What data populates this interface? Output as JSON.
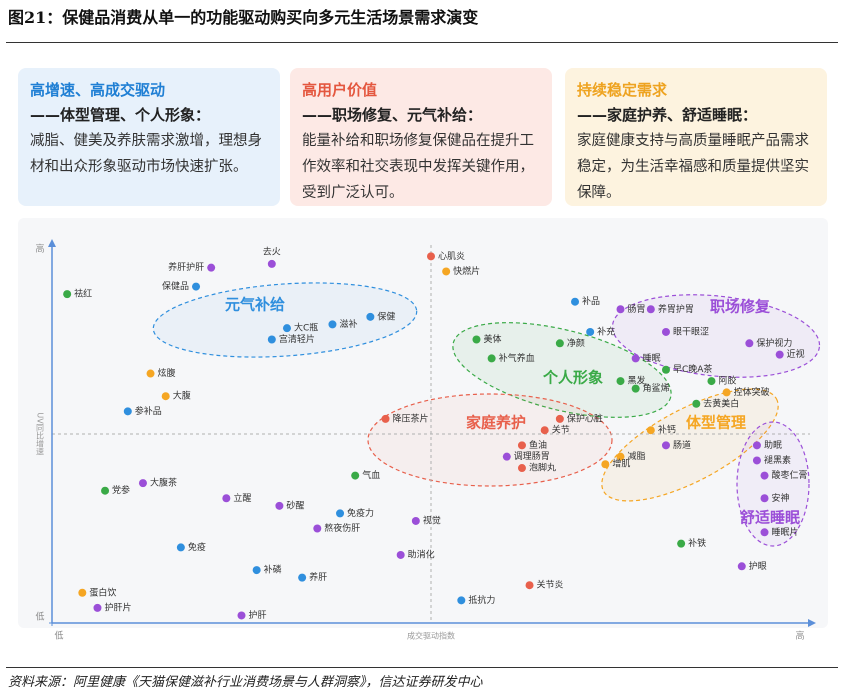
{
  "header": {
    "title": "图21：保健品消费从单一的功能驱动购买向多元生活场景需求演变"
  },
  "cards": [
    {
      "title": "高增速、高成交驱动",
      "subtitle": "——体型管理、个人形象：",
      "body": "减脂、健美及养肤需求激增，理想身材和出众形象驱动市场快速扩张。",
      "color": "#1f7fd4",
      "background": "#e7f1fb"
    },
    {
      "title": "高用户价值",
      "subtitle": "——职场修复、元气补给：",
      "body": "能量补给和职场修复保健品在提升工作效率和社交表现中发挥关键作用，受到广泛认可。",
      "color": "#e4573f",
      "background": "#fde9e5"
    },
    {
      "title": "持续稳定需求",
      "subtitle": "——家庭护养、舒适睡眠：",
      "body": "家庭健康支持与高质量睡眠产品需求稳定，为生活幸福感和质量提供坚实保障。",
      "color": "#eea320",
      "background": "#fdf3df"
    }
  ],
  "chart_data": {
    "type": "scatter",
    "x_label": "成交驱动指数",
    "y_label": "UV同比增速",
    "xlim": [
      0,
      100
    ],
    "ylim": [
      0,
      100
    ],
    "xticks": [
      {
        "value": 0,
        "label": "低"
      },
      {
        "value": 100,
        "label": "高"
      }
    ],
    "yticks": [
      {
        "value": 100,
        "label": "高"
      },
      {
        "value": 0,
        "label": "低"
      }
    ],
    "groups": [
      {
        "label": "元气补给",
        "color": "#2f8fde"
      },
      {
        "label": "职场修复",
        "color": "#9b4fd8"
      },
      {
        "label": "个人形象",
        "color": "#3aaa47"
      },
      {
        "label": "家庭养护",
        "color": "#e8604c"
      },
      {
        "label": "体型管理",
        "color": "#f5a623"
      },
      {
        "label": "舒适睡眠",
        "color": "#9b4fd8"
      }
    ],
    "points": [
      {
        "label": "祛红",
        "x": 2,
        "y": 87,
        "color": "#3aaa47"
      },
      {
        "label": "保健品",
        "x": 19,
        "y": 89,
        "color": "#2f8fde"
      },
      {
        "label": "养肝护肝",
        "x": 21,
        "y": 94,
        "color": "#9b4fd8"
      },
      {
        "label": "去火",
        "x": 29,
        "y": 95,
        "color": "#9b4fd8"
      },
      {
        "label": "大C瓶",
        "x": 31,
        "y": 78,
        "color": "#2f8fde"
      },
      {
        "label": "宫清轻片",
        "x": 29,
        "y": 75,
        "color": "#2f8fde"
      },
      {
        "label": "滋补",
        "x": 37,
        "y": 79,
        "color": "#2f8fde"
      },
      {
        "label": "保健",
        "x": 42,
        "y": 81,
        "color": "#2f8fde"
      },
      {
        "label": "心肌炎",
        "x": 50,
        "y": 97,
        "color": "#e8604c"
      },
      {
        "label": "快燃片",
        "x": 52,
        "y": 93,
        "color": "#f5a623"
      },
      {
        "label": "补品",
        "x": 69,
        "y": 85,
        "color": "#2f8fde"
      },
      {
        "label": "肠胃",
        "x": 75,
        "y": 83,
        "color": "#9b4fd8"
      },
      {
        "label": "养胃护胃",
        "x": 79,
        "y": 83,
        "color": "#9b4fd8"
      },
      {
        "label": "眼干眼涩",
        "x": 81,
        "y": 77,
        "color": "#9b4fd8"
      },
      {
        "label": "保护视力",
        "x": 92,
        "y": 74,
        "color": "#9b4fd8"
      },
      {
        "label": "近视",
        "x": 96,
        "y": 71,
        "color": "#9b4fd8"
      },
      {
        "label": "美体",
        "x": 56,
        "y": 75,
        "color": "#3aaa47"
      },
      {
        "label": "补充",
        "x": 71,
        "y": 77,
        "color": "#2f8fde"
      },
      {
        "label": "净颜",
        "x": 67,
        "y": 74,
        "color": "#3aaa47"
      },
      {
        "label": "睡眠",
        "x": 77,
        "y": 70,
        "color": "#9b4fd8"
      },
      {
        "label": "补气养血",
        "x": 58,
        "y": 70,
        "color": "#3aaa47"
      },
      {
        "label": "早C晚A茶",
        "x": 81,
        "y": 67,
        "color": "#3aaa47"
      },
      {
        "label": "黑发",
        "x": 75,
        "y": 64,
        "color": "#3aaa47"
      },
      {
        "label": "阿胶",
        "x": 87,
        "y": 64,
        "color": "#3aaa47"
      },
      {
        "label": "角鲨烯",
        "x": 77,
        "y": 62,
        "color": "#3aaa47"
      },
      {
        "label": "控体突破",
        "x": 89,
        "y": 61,
        "color": "#f5a623"
      },
      {
        "label": "去黄美白",
        "x": 85,
        "y": 58,
        "color": "#3aaa47"
      },
      {
        "label": "炫腹",
        "x": 13,
        "y": 66,
        "color": "#f5a623"
      },
      {
        "label": "大腹",
        "x": 15,
        "y": 60,
        "color": "#f5a623"
      },
      {
        "label": "参补品",
        "x": 10,
        "y": 56,
        "color": "#2f8fde"
      },
      {
        "label": "降压茶片",
        "x": 44,
        "y": 54,
        "color": "#e8604c"
      },
      {
        "label": "保护心脏",
        "x": 67,
        "y": 54,
        "color": "#e8604c"
      },
      {
        "label": "关节",
        "x": 65,
        "y": 51,
        "color": "#e8604c"
      },
      {
        "label": "补钙",
        "x": 79,
        "y": 51,
        "color": "#f5a623"
      },
      {
        "label": "肠道",
        "x": 81,
        "y": 47,
        "color": "#9b4fd8"
      },
      {
        "label": "助眠",
        "x": 93,
        "y": 47,
        "color": "#9b4fd8"
      },
      {
        "label": "鱼油",
        "x": 62,
        "y": 47,
        "color": "#e8604c"
      },
      {
        "label": "调理肠胃",
        "x": 60,
        "y": 44,
        "color": "#9b4fd8"
      },
      {
        "label": "减脂",
        "x": 75,
        "y": 44,
        "color": "#f5a623"
      },
      {
        "label": "褪黑素",
        "x": 93,
        "y": 43,
        "color": "#9b4fd8"
      },
      {
        "label": "增肌",
        "x": 73,
        "y": 42,
        "color": "#f5a623"
      },
      {
        "label": "泡脚丸",
        "x": 62,
        "y": 41,
        "color": "#e8604c"
      },
      {
        "label": "酸枣仁膏",
        "x": 94,
        "y": 39,
        "color": "#9b4fd8"
      },
      {
        "label": "气血",
        "x": 40,
        "y": 39,
        "color": "#3aaa47"
      },
      {
        "label": "大腹茶",
        "x": 12,
        "y": 37,
        "color": "#9b4fd8"
      },
      {
        "label": "党参",
        "x": 7,
        "y": 35,
        "color": "#3aaa47"
      },
      {
        "label": "立醒",
        "x": 23,
        "y": 33,
        "color": "#9b4fd8"
      },
      {
        "label": "砂醒",
        "x": 30,
        "y": 31,
        "color": "#9b4fd8"
      },
      {
        "label": "安神",
        "x": 94,
        "y": 33,
        "color": "#9b4fd8"
      },
      {
        "label": "免疫力",
        "x": 38,
        "y": 29,
        "color": "#2f8fde"
      },
      {
        "label": "熬夜伤肝",
        "x": 35,
        "y": 25,
        "color": "#9b4fd8"
      },
      {
        "label": "视觉",
        "x": 48,
        "y": 27,
        "color": "#9b4fd8"
      },
      {
        "label": "睡眠片",
        "x": 94,
        "y": 24,
        "color": "#9b4fd8"
      },
      {
        "label": "免疫",
        "x": 17,
        "y": 20,
        "color": "#2f8fde"
      },
      {
        "label": "补铁",
        "x": 83,
        "y": 21,
        "color": "#3aaa47"
      },
      {
        "label": "助消化",
        "x": 46,
        "y": 18,
        "color": "#9b4fd8"
      },
      {
        "label": "护眼",
        "x": 91,
        "y": 15,
        "color": "#9b4fd8"
      },
      {
        "label": "补磷",
        "x": 27,
        "y": 14,
        "color": "#2f8fde"
      },
      {
        "label": "养肝",
        "x": 33,
        "y": 12,
        "color": "#2f8fde"
      },
      {
        "label": "关节炎",
        "x": 63,
        "y": 10,
        "color": "#e8604c"
      },
      {
        "label": "蛋白饮",
        "x": 4,
        "y": 8,
        "color": "#f5a623"
      },
      {
        "label": "抵抗力",
        "x": 54,
        "y": 6,
        "color": "#2f8fde"
      },
      {
        "label": "护肝片",
        "x": 6,
        "y": 4,
        "color": "#9b4fd8"
      },
      {
        "label": "护肝",
        "x": 25,
        "y": 2,
        "color": "#9b4fd8"
      }
    ]
  },
  "footer": {
    "source": "资料来源：阿里健康《天猫保健滋补行业消费场景与人群洞察》，信达证券研发中心"
  }
}
